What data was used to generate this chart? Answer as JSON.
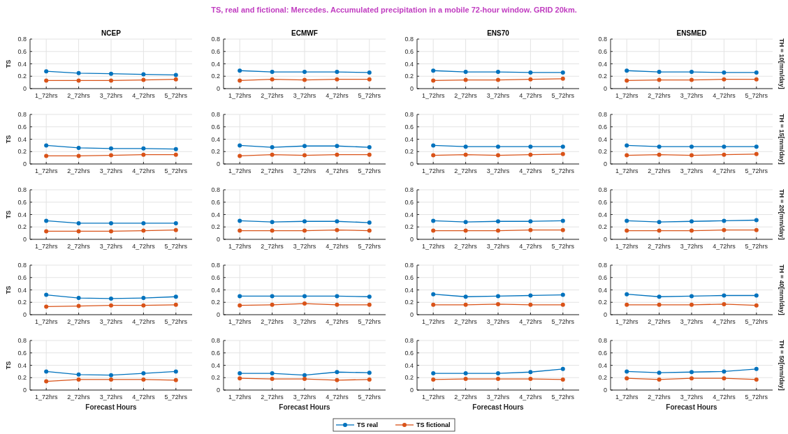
{
  "chart_data": [
    {
      "type": "line",
      "title": "NCEP",
      "ylabel": "TS",
      "annotations": [
        "TS, real and fictional: Mercedes. Accumulated precipitation in a mobile 72-hour window. GRID 20km."
      ],
      "categories": [
        "1_72hrs",
        "2_72hrs",
        "3_72hrs",
        "4_72hrs",
        "5_72hrs"
      ],
      "ylim": [
        0,
        0.8
      ],
      "yticks": [
        0,
        0.2,
        0.4,
        0.6,
        0.8
      ],
      "grid": true,
      "marker": "circle",
      "legend": "bottom",
      "series": [
        {
          "name": "TS real",
          "color": "#0072bd",
          "values": [
            0.28,
            0.25,
            0.24,
            0.23,
            0.22
          ]
        },
        {
          "name": "TS fictional",
          "color": "#d95319",
          "values": [
            0.13,
            0.13,
            0.13,
            0.14,
            0.15
          ]
        }
      ]
    },
    {
      "type": "line",
      "title": "ECMWF",
      "categories": [
        "1_72hrs",
        "2_72hrs",
        "3_72hrs",
        "4_72hrs",
        "5_72hrs"
      ],
      "ylim": [
        0,
        0.8
      ],
      "yticks": [
        0,
        0.2,
        0.4,
        0.6,
        0.8
      ],
      "grid": true,
      "marker": "circle",
      "series": [
        {
          "color": "#0072bd",
          "values": [
            0.29,
            0.27,
            0.27,
            0.27,
            0.26
          ]
        },
        {
          "color": "#d95319",
          "values": [
            0.13,
            0.15,
            0.14,
            0.15,
            0.15
          ]
        }
      ]
    },
    {
      "type": "line",
      "title": "ENS70",
      "categories": [
        "1_72hrs",
        "2_72hrs",
        "3_72hrs",
        "4_72hrs",
        "5_72hrs"
      ],
      "ylim": [
        0,
        0.8
      ],
      "yticks": [
        0,
        0.2,
        0.4,
        0.6,
        0.8
      ],
      "grid": true,
      "marker": "circle",
      "series": [
        {
          "color": "#0072bd",
          "values": [
            0.29,
            0.27,
            0.27,
            0.26,
            0.26
          ]
        },
        {
          "color": "#d95319",
          "values": [
            0.13,
            0.14,
            0.14,
            0.15,
            0.16
          ]
        }
      ]
    },
    {
      "type": "line",
      "title": "ENSMED",
      "y2label": "TH = 10[mm/day]",
      "categories": [
        "1_72hrs",
        "2_72hrs",
        "3_72hrs",
        "4_72hrs",
        "5_72hrs"
      ],
      "ylim": [
        0,
        0.8
      ],
      "yticks": [
        0,
        0.2,
        0.4,
        0.6,
        0.8
      ],
      "grid": true,
      "marker": "circle",
      "series": [
        {
          "color": "#0072bd",
          "values": [
            0.29,
            0.27,
            0.27,
            0.26,
            0.26
          ]
        },
        {
          "color": "#d95319",
          "values": [
            0.13,
            0.14,
            0.14,
            0.15,
            0.15
          ]
        }
      ]
    },
    {
      "type": "line",
      "ylabel": "TS",
      "categories": [
        "1_72hrs",
        "2_72hrs",
        "3_72hrs",
        "4_72hrs",
        "5_72hrs"
      ],
      "ylim": [
        0,
        0.8
      ],
      "yticks": [
        0,
        0.2,
        0.4,
        0.6,
        0.8
      ],
      "grid": true,
      "marker": "circle",
      "series": [
        {
          "color": "#0072bd",
          "values": [
            0.3,
            0.26,
            0.25,
            0.25,
            0.24
          ]
        },
        {
          "color": "#d95319",
          "values": [
            0.13,
            0.13,
            0.14,
            0.15,
            0.15
          ]
        }
      ]
    },
    {
      "type": "line",
      "categories": [
        "1_72hrs",
        "2_72hrs",
        "3_72hrs",
        "4_72hrs",
        "5_72hrs"
      ],
      "ylim": [
        0,
        0.8
      ],
      "yticks": [
        0,
        0.2,
        0.4,
        0.6,
        0.8
      ],
      "grid": true,
      "marker": "circle",
      "series": [
        {
          "color": "#0072bd",
          "values": [
            0.3,
            0.27,
            0.29,
            0.29,
            0.27
          ]
        },
        {
          "color": "#d95319",
          "values": [
            0.13,
            0.15,
            0.14,
            0.15,
            0.15
          ]
        }
      ]
    },
    {
      "type": "line",
      "categories": [
        "1_72hrs",
        "2_72hrs",
        "3_72hrs",
        "4_72hrs",
        "5_72hrs"
      ],
      "ylim": [
        0,
        0.8
      ],
      "yticks": [
        0,
        0.2,
        0.4,
        0.6,
        0.8
      ],
      "grid": true,
      "marker": "circle",
      "series": [
        {
          "color": "#0072bd",
          "values": [
            0.3,
            0.28,
            0.28,
            0.28,
            0.28
          ]
        },
        {
          "color": "#d95319",
          "values": [
            0.14,
            0.15,
            0.14,
            0.15,
            0.16
          ]
        }
      ]
    },
    {
      "type": "line",
      "y2label": "TH = 15[mm/day]",
      "categories": [
        "1_72hrs",
        "2_72hrs",
        "3_72hrs",
        "4_72hrs",
        "5_72hrs"
      ],
      "ylim": [
        0,
        0.8
      ],
      "yticks": [
        0,
        0.2,
        0.4,
        0.6,
        0.8
      ],
      "grid": true,
      "marker": "circle",
      "series": [
        {
          "color": "#0072bd",
          "values": [
            0.3,
            0.28,
            0.28,
            0.28,
            0.28
          ]
        },
        {
          "color": "#d95319",
          "values": [
            0.14,
            0.15,
            0.14,
            0.15,
            0.16
          ]
        }
      ]
    },
    {
      "type": "line",
      "ylabel": "TS",
      "categories": [
        "1_72hrs",
        "2_72hrs",
        "3_72hrs",
        "4_72hrs",
        "5_72hrs"
      ],
      "ylim": [
        0,
        0.8
      ],
      "yticks": [
        0,
        0.2,
        0.4,
        0.6,
        0.8
      ],
      "grid": true,
      "marker": "circle",
      "series": [
        {
          "color": "#0072bd",
          "values": [
            0.3,
            0.26,
            0.26,
            0.26,
            0.26
          ]
        },
        {
          "color": "#d95319",
          "values": [
            0.13,
            0.13,
            0.13,
            0.14,
            0.15
          ]
        }
      ]
    },
    {
      "type": "line",
      "categories": [
        "1_72hrs",
        "2_72hrs",
        "3_72hrs",
        "4_72hrs",
        "5_72hrs"
      ],
      "ylim": [
        0,
        0.8
      ],
      "yticks": [
        0,
        0.2,
        0.4,
        0.6,
        0.8
      ],
      "grid": true,
      "marker": "circle",
      "series": [
        {
          "color": "#0072bd",
          "values": [
            0.3,
            0.28,
            0.29,
            0.29,
            0.27
          ]
        },
        {
          "color": "#d95319",
          "values": [
            0.14,
            0.14,
            0.14,
            0.15,
            0.14
          ]
        }
      ]
    },
    {
      "type": "line",
      "categories": [
        "1_72hrs",
        "2_72hrs",
        "3_72hrs",
        "4_72hrs",
        "5_72hrs"
      ],
      "ylim": [
        0,
        0.8
      ],
      "yticks": [
        0,
        0.2,
        0.4,
        0.6,
        0.8
      ],
      "grid": true,
      "marker": "circle",
      "series": [
        {
          "color": "#0072bd",
          "values": [
            0.3,
            0.28,
            0.29,
            0.29,
            0.3
          ]
        },
        {
          "color": "#d95319",
          "values": [
            0.14,
            0.14,
            0.14,
            0.15,
            0.15
          ]
        }
      ]
    },
    {
      "type": "line",
      "y2label": "TH = 20[mm/day]",
      "categories": [
        "1_72hrs",
        "2_72hrs",
        "3_72hrs",
        "4_72hrs",
        "5_72hrs"
      ],
      "ylim": [
        0,
        0.8
      ],
      "yticks": [
        0,
        0.2,
        0.4,
        0.6,
        0.8
      ],
      "grid": true,
      "marker": "circle",
      "series": [
        {
          "color": "#0072bd",
          "values": [
            0.3,
            0.28,
            0.29,
            0.3,
            0.31
          ]
        },
        {
          "color": "#d95319",
          "values": [
            0.14,
            0.14,
            0.14,
            0.15,
            0.15
          ]
        }
      ]
    },
    {
      "type": "line",
      "ylabel": "TS",
      "categories": [
        "1_72hrs",
        "2_72hrs",
        "3_72hrs",
        "4_72hrs",
        "5_72hrs"
      ],
      "ylim": [
        0,
        0.8
      ],
      "yticks": [
        0,
        0.2,
        0.4,
        0.6,
        0.8
      ],
      "grid": true,
      "marker": "circle",
      "series": [
        {
          "color": "#0072bd",
          "values": [
            0.32,
            0.27,
            0.26,
            0.27,
            0.29
          ]
        },
        {
          "color": "#d95319",
          "values": [
            0.13,
            0.14,
            0.15,
            0.15,
            0.16
          ]
        }
      ]
    },
    {
      "type": "line",
      "categories": [
        "1_72hrs",
        "2_72hrs",
        "3_72hrs",
        "4_72hrs",
        "5_72hrs"
      ],
      "ylim": [
        0,
        0.8
      ],
      "yticks": [
        0,
        0.2,
        0.4,
        0.6,
        0.8
      ],
      "grid": true,
      "marker": "circle",
      "series": [
        {
          "color": "#0072bd",
          "values": [
            0.3,
            0.3,
            0.3,
            0.3,
            0.29
          ]
        },
        {
          "color": "#d95319",
          "values": [
            0.15,
            0.16,
            0.18,
            0.16,
            0.16
          ]
        }
      ]
    },
    {
      "type": "line",
      "categories": [
        "1_72hrs",
        "2_72hrs",
        "3_72hrs",
        "4_72hrs",
        "5_72hrs"
      ],
      "ylim": [
        0,
        0.8
      ],
      "yticks": [
        0,
        0.2,
        0.4,
        0.6,
        0.8
      ],
      "grid": true,
      "marker": "circle",
      "series": [
        {
          "color": "#0072bd",
          "values": [
            0.33,
            0.29,
            0.3,
            0.31,
            0.32
          ]
        },
        {
          "color": "#d95319",
          "values": [
            0.16,
            0.16,
            0.17,
            0.16,
            0.16
          ]
        }
      ]
    },
    {
      "type": "line",
      "y2label": "TH = 40[mm/day]",
      "categories": [
        "1_72hrs",
        "2_72hrs",
        "3_72hrs",
        "4_72hrs",
        "5_72hrs"
      ],
      "ylim": [
        0,
        0.8
      ],
      "yticks": [
        0,
        0.2,
        0.4,
        0.6,
        0.8
      ],
      "grid": true,
      "marker": "circle",
      "series": [
        {
          "color": "#0072bd",
          "values": [
            0.33,
            0.29,
            0.3,
            0.31,
            0.31
          ]
        },
        {
          "color": "#d95319",
          "values": [
            0.16,
            0.16,
            0.16,
            0.17,
            0.15
          ]
        }
      ]
    },
    {
      "type": "line",
      "ylabel": "TS",
      "xlabel": "Forecast Hours",
      "categories": [
        "1_72hrs",
        "2_72hrs",
        "3_72hrs",
        "4_72hrs",
        "5_72hrs"
      ],
      "ylim": [
        0,
        0.8
      ],
      "yticks": [
        0,
        0.2,
        0.4,
        0.6,
        0.8
      ],
      "grid": true,
      "marker": "circle",
      "series": [
        {
          "color": "#0072bd",
          "values": [
            0.3,
            0.25,
            0.24,
            0.27,
            0.3
          ]
        },
        {
          "color": "#d95319",
          "values": [
            0.14,
            0.17,
            0.17,
            0.17,
            0.16
          ]
        }
      ]
    },
    {
      "type": "line",
      "xlabel": "Forecast Hours",
      "categories": [
        "1_72hrs",
        "2_72hrs",
        "3_72hrs",
        "4_72hrs",
        "5_72hrs"
      ],
      "ylim": [
        0,
        0.8
      ],
      "yticks": [
        0,
        0.2,
        0.4,
        0.6,
        0.8
      ],
      "grid": true,
      "marker": "circle",
      "series": [
        {
          "color": "#0072bd",
          "values": [
            0.27,
            0.27,
            0.24,
            0.29,
            0.28
          ]
        },
        {
          "color": "#d95319",
          "values": [
            0.19,
            0.18,
            0.18,
            0.16,
            0.17
          ]
        }
      ]
    },
    {
      "type": "line",
      "xlabel": "Forecast Hours",
      "categories": [
        "1_72hrs",
        "2_72hrs",
        "3_72hrs",
        "4_72hrs",
        "5_72hrs"
      ],
      "ylim": [
        0,
        0.8
      ],
      "yticks": [
        0,
        0.2,
        0.4,
        0.6,
        0.8
      ],
      "grid": true,
      "marker": "circle",
      "series": [
        {
          "color": "#0072bd",
          "values": [
            0.27,
            0.27,
            0.27,
            0.29,
            0.34
          ]
        },
        {
          "color": "#d95319",
          "values": [
            0.17,
            0.18,
            0.18,
            0.18,
            0.17
          ]
        }
      ]
    },
    {
      "type": "line",
      "xlabel": "Forecast Hours",
      "y2label": "TH = 50[mm/day]",
      "categories": [
        "1_72hrs",
        "2_72hrs",
        "3_72hrs",
        "4_72hrs",
        "5_72hrs"
      ],
      "ylim": [
        0,
        0.8
      ],
      "yticks": [
        0,
        0.2,
        0.4,
        0.6,
        0.8
      ],
      "grid": true,
      "marker": "circle",
      "series": [
        {
          "color": "#0072bd",
          "values": [
            0.3,
            0.28,
            0.29,
            0.3,
            0.34
          ]
        },
        {
          "color": "#d95319",
          "values": [
            0.19,
            0.17,
            0.19,
            0.19,
            0.17
          ]
        }
      ]
    }
  ]
}
